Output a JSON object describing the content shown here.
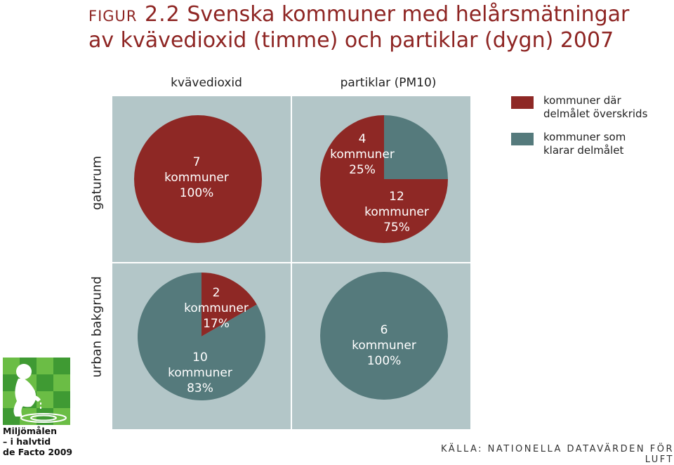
{
  "title": {
    "figure_label": "figur 2.2",
    "line1": "Svenska kommuner med helårsmätningar",
    "line2": "av kvävedioxid (timme) och partiklar (dygn) 2007"
  },
  "columns": [
    "kvävedioxid",
    "partiklar (PM10)"
  ],
  "rows": [
    "gaturum",
    "urban bakgrund"
  ],
  "legend": [
    {
      "label_line1": "kommuner där",
      "label_line2": "delmålet överskrids",
      "color": "#8e2825"
    },
    {
      "label_line1": "kommuner som",
      "label_line2": "klarar delmålet",
      "color": "#557a7c"
    }
  ],
  "colors": {
    "exceeds": "#8e2825",
    "meets": "#557a7c",
    "panel": "#b3c6c8"
  },
  "logo": {
    "icon": "child-drinking-water-logo",
    "line1": "Miljömålen",
    "line2": "– i halvtid",
    "line3": "de Facto 2009"
  },
  "source": "KÄLLA: NATIONELLA DATAVÄRDEN FÖR LUFT",
  "chart_data": [
    {
      "type": "pie",
      "row": "gaturum",
      "column": "kvävedioxid",
      "slices": [
        {
          "series": "kommuner där delmålet överskrids",
          "value": 7,
          "percent": 100,
          "label": [
            "7",
            "kommuner",
            "100%"
          ]
        }
      ]
    },
    {
      "type": "pie",
      "row": "gaturum",
      "column": "partiklar (PM10)",
      "slices": [
        {
          "series": "kommuner som klarar delmålet",
          "value": 4,
          "percent": 25,
          "label": [
            "4",
            "kommuner",
            "25%"
          ]
        },
        {
          "series": "kommuner där delmålet överskrids",
          "value": 12,
          "percent": 75,
          "label": [
            "12",
            "kommuner",
            "75%"
          ]
        }
      ]
    },
    {
      "type": "pie",
      "row": "urban bakgrund",
      "column": "kvävedioxid",
      "slices": [
        {
          "series": "kommuner där delmålet överskrids",
          "value": 2,
          "percent": 17,
          "label": [
            "2",
            "kommuner",
            "17%"
          ]
        },
        {
          "series": "kommuner som klarar delmålet",
          "value": 10,
          "percent": 83,
          "label": [
            "10",
            "kommuner",
            "83%"
          ]
        }
      ]
    },
    {
      "type": "pie",
      "row": "urban bakgrund",
      "column": "partiklar (PM10)",
      "slices": [
        {
          "series": "kommuner som klarar delmålet",
          "value": 6,
          "percent": 100,
          "label": [
            "6",
            "kommuner",
            "100%"
          ]
        }
      ]
    }
  ]
}
